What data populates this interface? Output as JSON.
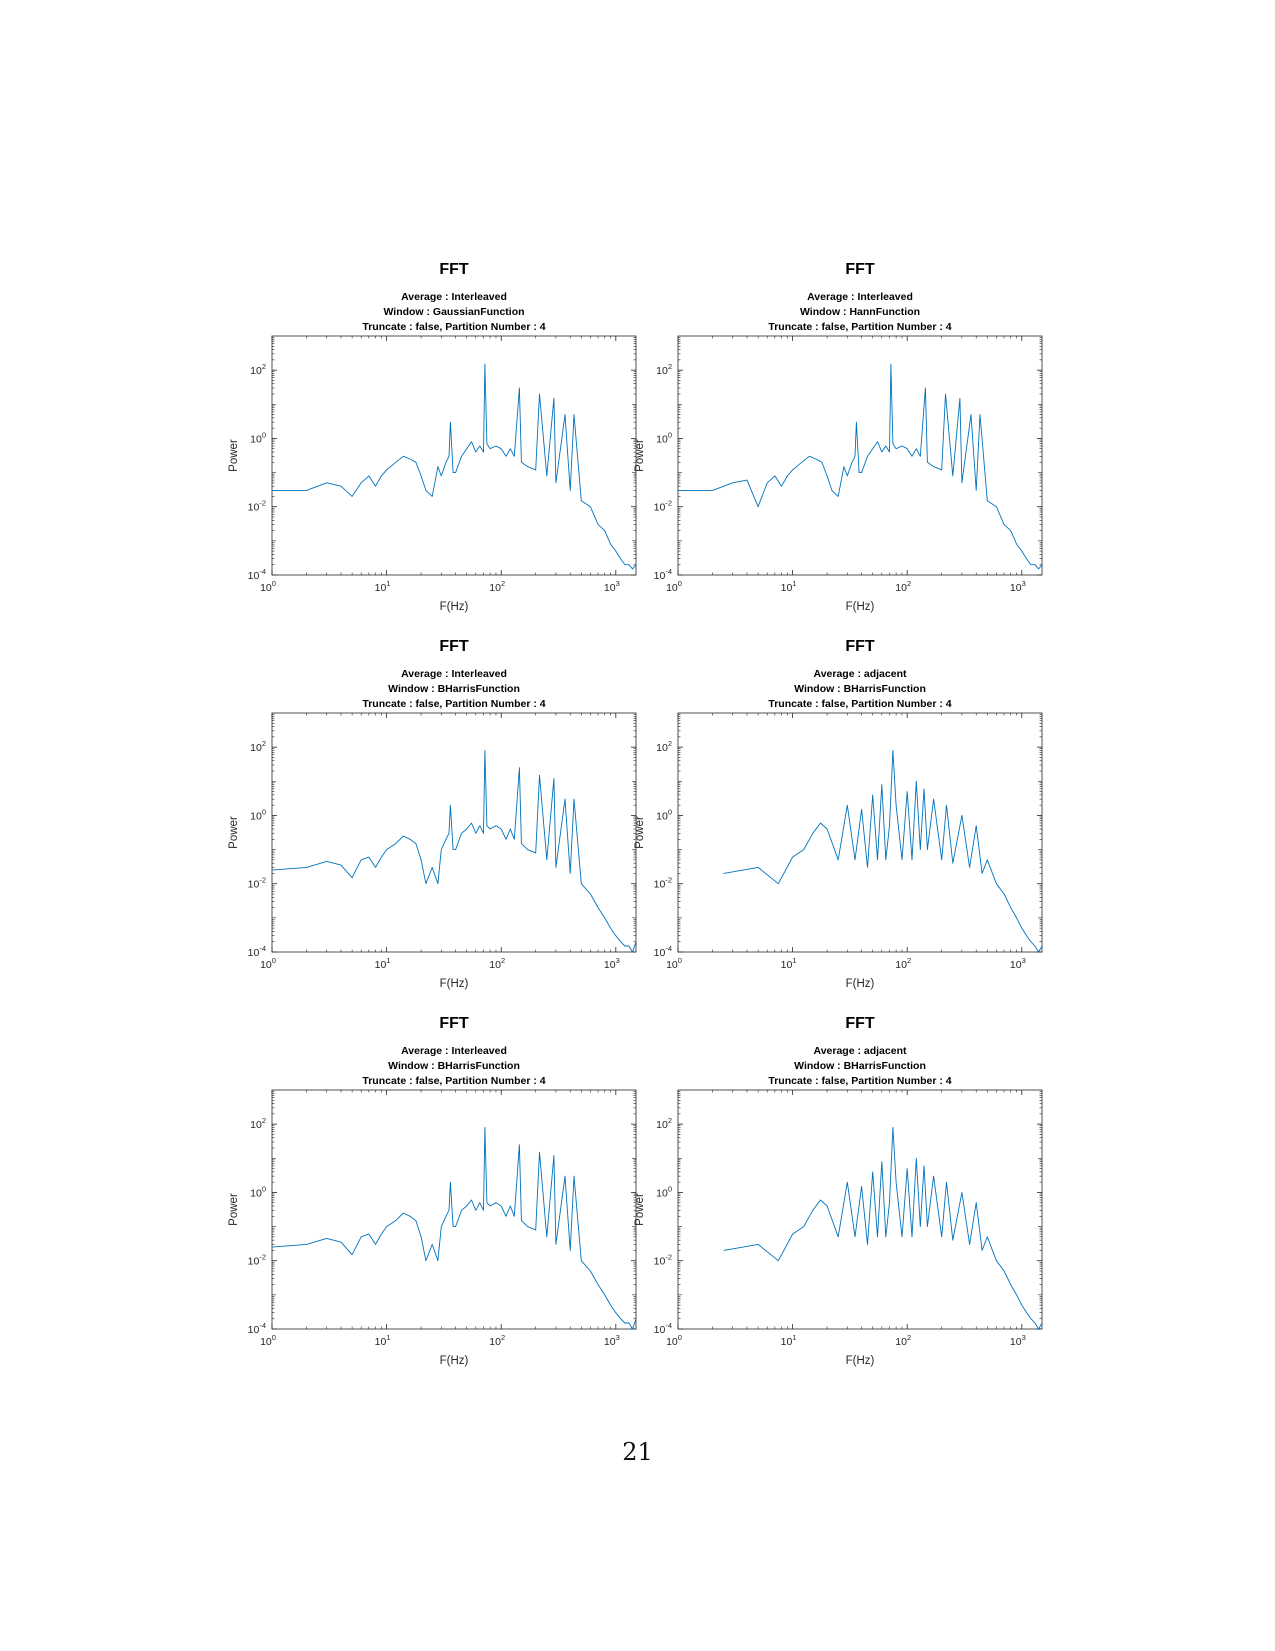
{
  "page": {
    "number": "21"
  },
  "chart_data": [
    {
      "type": "line",
      "title": "FFT",
      "subtitle": [
        "Average : Interleaved",
        "Window : GaussianFunction",
        "Truncate : false,  Partition Number : 4"
      ],
      "xlabel": "F(Hz)",
      "ylabel": "Power",
      "xscale": "log",
      "yscale": "log",
      "xlim": [
        1,
        1500
      ],
      "ylim": [
        0.0001,
        1000
      ],
      "xticks": [
        1,
        10,
        100,
        1000
      ],
      "xticklabels": [
        [
          "10",
          "0"
        ],
        [
          "10",
          "1"
        ],
        [
          "10",
          "2"
        ],
        [
          "10",
          "3"
        ]
      ],
      "yticks": [
        0.0001,
        0.01,
        1,
        100
      ],
      "yticklabels": [
        [
          "10",
          "-4"
        ],
        [
          "10",
          "-2"
        ],
        [
          "10",
          "0"
        ],
        [
          "10",
          "2"
        ]
      ],
      "grid": false,
      "color": "#0072BD",
      "series": [
        {
          "x": [
            1,
            2,
            3,
            4,
            5,
            6,
            7,
            8,
            9,
            10,
            12,
            14,
            16,
            18,
            20,
            22,
            25,
            28,
            30,
            33,
            35,
            36,
            38,
            40,
            45,
            50,
            55,
            60,
            65,
            70,
            72,
            75,
            80,
            90,
            100,
            110,
            120,
            130,
            144,
            150,
            170,
            200,
            216,
            250,
            288,
            300,
            360,
            400,
            432,
            500,
            600,
            700,
            800,
            900,
            1000,
            1100,
            1200,
            1300,
            1400,
            1500
          ],
          "y": [
            0.03,
            0.03,
            0.05,
            0.04,
            0.02,
            0.05,
            0.08,
            0.04,
            0.08,
            0.12,
            0.2,
            0.3,
            0.25,
            0.2,
            0.08,
            0.03,
            0.02,
            0.15,
            0.08,
            0.2,
            0.3,
            3,
            0.1,
            0.1,
            0.3,
            0.5,
            0.8,
            0.4,
            0.6,
            0.4,
            150,
            0.7,
            0.5,
            0.6,
            0.5,
            0.3,
            0.5,
            0.3,
            30,
            0.2,
            0.15,
            0.12,
            20,
            0.08,
            15,
            0.05,
            5,
            0.03,
            5,
            0.015,
            0.01,
            0.003,
            0.002,
            0.0008,
            0.0005,
            0.0003,
            0.0002,
            0.0002,
            0.00015,
            0.0002
          ]
        }
      ]
    },
    {
      "type": "line",
      "title": "FFT",
      "subtitle": [
        "Average : Interleaved",
        "Window : HannFunction",
        "Truncate : false,  Partition Number : 4"
      ],
      "xlabel": "F(Hz)",
      "ylabel": "Power",
      "xscale": "log",
      "yscale": "log",
      "xlim": [
        1,
        1500
      ],
      "ylim": [
        0.0001,
        1000
      ],
      "xticks": [
        1,
        10,
        100,
        1000
      ],
      "xticklabels": [
        [
          "10",
          "0"
        ],
        [
          "10",
          "1"
        ],
        [
          "10",
          "2"
        ],
        [
          "10",
          "3"
        ]
      ],
      "yticks": [
        0.0001,
        0.01,
        1,
        100
      ],
      "yticklabels": [
        [
          "10",
          "-4"
        ],
        [
          "10",
          "-2"
        ],
        [
          "10",
          "0"
        ],
        [
          "10",
          "2"
        ]
      ],
      "grid": false,
      "color": "#0072BD",
      "series": [
        {
          "x": [
            1,
            2,
            3,
            4,
            5,
            6,
            7,
            8,
            9,
            10,
            12,
            14,
            16,
            18,
            20,
            22,
            25,
            28,
            30,
            33,
            35,
            36,
            38,
            40,
            45,
            50,
            55,
            60,
            65,
            70,
            72,
            75,
            80,
            90,
            100,
            110,
            120,
            130,
            144,
            150,
            170,
            200,
            216,
            250,
            288,
            300,
            360,
            400,
            432,
            500,
            600,
            700,
            800,
            900,
            1000,
            1100,
            1200,
            1300,
            1400,
            1500
          ],
          "y": [
            0.03,
            0.03,
            0.05,
            0.06,
            0.01,
            0.05,
            0.08,
            0.04,
            0.08,
            0.12,
            0.2,
            0.3,
            0.25,
            0.2,
            0.08,
            0.03,
            0.02,
            0.15,
            0.08,
            0.2,
            0.3,
            3,
            0.1,
            0.1,
            0.3,
            0.5,
            0.8,
            0.4,
            0.6,
            0.4,
            150,
            0.7,
            0.5,
            0.6,
            0.5,
            0.3,
            0.5,
            0.3,
            30,
            0.2,
            0.15,
            0.12,
            20,
            0.08,
            15,
            0.05,
            5,
            0.03,
            5,
            0.015,
            0.01,
            0.003,
            0.002,
            0.0008,
            0.0005,
            0.0003,
            0.0002,
            0.0002,
            0.00015,
            0.0002
          ]
        }
      ]
    },
    {
      "type": "line",
      "title": "FFT",
      "subtitle": [
        "Average : Interleaved",
        "Window : BHarrisFunction",
        "Truncate : false,  Partition Number : 4"
      ],
      "xlabel": "F(Hz)",
      "ylabel": "Power",
      "xscale": "log",
      "yscale": "log",
      "xlim": [
        1,
        1500
      ],
      "ylim": [
        0.0001,
        1000
      ],
      "xticks": [
        1,
        10,
        100,
        1000
      ],
      "xticklabels": [
        [
          "10",
          "0"
        ],
        [
          "10",
          "1"
        ],
        [
          "10",
          "2"
        ],
        [
          "10",
          "3"
        ]
      ],
      "yticks": [
        0.0001,
        0.01,
        1,
        100
      ],
      "yticklabels": [
        [
          "10",
          "-4"
        ],
        [
          "10",
          "-2"
        ],
        [
          "10",
          "0"
        ],
        [
          "10",
          "2"
        ]
      ],
      "grid": false,
      "color": "#0072BD",
      "series": [
        {
          "x": [
            1,
            2,
            3,
            4,
            5,
            6,
            7,
            8,
            9,
            10,
            12,
            14,
            16,
            18,
            20,
            22,
            25,
            28,
            30,
            33,
            35,
            36,
            38,
            40,
            45,
            50,
            55,
            60,
            65,
            70,
            72,
            75,
            80,
            90,
            100,
            110,
            120,
            130,
            144,
            150,
            170,
            200,
            216,
            250,
            288,
            300,
            360,
            400,
            432,
            500,
            600,
            700,
            800,
            900,
            1000,
            1100,
            1200,
            1300,
            1400,
            1500
          ],
          "y": [
            0.025,
            0.03,
            0.045,
            0.035,
            0.015,
            0.05,
            0.06,
            0.03,
            0.06,
            0.1,
            0.15,
            0.25,
            0.2,
            0.15,
            0.05,
            0.01,
            0.03,
            0.01,
            0.1,
            0.2,
            0.3,
            2,
            0.1,
            0.1,
            0.3,
            0.4,
            0.6,
            0.3,
            0.5,
            0.3,
            80,
            0.5,
            0.4,
            0.5,
            0.4,
            0.2,
            0.4,
            0.2,
            25,
            0.15,
            0.1,
            0.08,
            15,
            0.05,
            12,
            0.03,
            3,
            0.02,
            3,
            0.01,
            0.005,
            0.002,
            0.001,
            0.0005,
            0.0003,
            0.0002,
            0.00015,
            0.00015,
            0.0001,
            0.0002
          ]
        }
      ]
    },
    {
      "type": "line",
      "title": "FFT",
      "subtitle": [
        "Average : adjacent",
        "Window : BHarrisFunction",
        "Truncate : false,  Partition Number : 4"
      ],
      "xlabel": "F(Hz)",
      "ylabel": "Power",
      "xscale": "log",
      "yscale": "log",
      "xlim": [
        1,
        1500
      ],
      "ylim": [
        0.0001,
        1000
      ],
      "xticks": [
        1,
        10,
        100,
        1000
      ],
      "xticklabels": [
        [
          "10",
          "0"
        ],
        [
          "10",
          "1"
        ],
        [
          "10",
          "2"
        ],
        [
          "10",
          "3"
        ]
      ],
      "yticks": [
        0.0001,
        0.01,
        1,
        100
      ],
      "yticklabels": [
        [
          "10",
          "-4"
        ],
        [
          "10",
          "-2"
        ],
        [
          "10",
          "0"
        ],
        [
          "10",
          "2"
        ]
      ],
      "grid": false,
      "color": "#0072BD",
      "series": [
        {
          "x": [
            2.5,
            5,
            7.5,
            10,
            12.5,
            15,
            17.5,
            20,
            25,
            30,
            35,
            40,
            45,
            50,
            55,
            60,
            65,
            70,
            75,
            80,
            90,
            100,
            110,
            120,
            130,
            140,
            150,
            170,
            200,
            220,
            250,
            300,
            350,
            400,
            450,
            500,
            600,
            700,
            800,
            900,
            1000,
            1100,
            1200,
            1300,
            1400,
            1500
          ],
          "y": [
            0.02,
            0.03,
            0.01,
            0.06,
            0.1,
            0.3,
            0.6,
            0.4,
            0.05,
            2,
            0.05,
            1.5,
            0.03,
            4,
            0.05,
            8,
            0.05,
            0.5,
            80,
            2,
            0.05,
            5,
            0.05,
            10,
            0.1,
            6,
            0.1,
            3,
            0.05,
            2,
            0.04,
            1,
            0.03,
            0.5,
            0.02,
            0.05,
            0.01,
            0.005,
            0.002,
            0.001,
            0.0005,
            0.0003,
            0.0002,
            0.00015,
            0.0001,
            0.00015
          ]
        }
      ]
    },
    {
      "type": "line",
      "title": "FFT",
      "subtitle": [
        "Average : Interleaved",
        "Window : BHarrisFunction",
        "Truncate : false,  Partition Number : 4"
      ],
      "xlabel": "F(Hz)",
      "ylabel": "Power",
      "xscale": "log",
      "yscale": "log",
      "xlim": [
        1,
        1500
      ],
      "ylim": [
        0.0001,
        1000
      ],
      "xticks": [
        1,
        10,
        100,
        1000
      ],
      "xticklabels": [
        [
          "10",
          "0"
        ],
        [
          "10",
          "1"
        ],
        [
          "10",
          "2"
        ],
        [
          "10",
          "3"
        ]
      ],
      "yticks": [
        0.0001,
        0.01,
        1,
        100
      ],
      "yticklabels": [
        [
          "10",
          "-4"
        ],
        [
          "10",
          "-2"
        ],
        [
          "10",
          "0"
        ],
        [
          "10",
          "2"
        ]
      ],
      "grid": false,
      "color": "#0072BD",
      "series": [
        {
          "x": [
            1,
            2,
            3,
            4,
            5,
            6,
            7,
            8,
            9,
            10,
            12,
            14,
            16,
            18,
            20,
            22,
            25,
            28,
            30,
            33,
            35,
            36,
            38,
            40,
            45,
            50,
            55,
            60,
            65,
            70,
            72,
            75,
            80,
            90,
            100,
            110,
            120,
            130,
            144,
            150,
            170,
            200,
            216,
            250,
            288,
            300,
            360,
            400,
            432,
            500,
            600,
            700,
            800,
            900,
            1000,
            1100,
            1200,
            1300,
            1400,
            1500
          ],
          "y": [
            0.025,
            0.03,
            0.045,
            0.035,
            0.015,
            0.05,
            0.06,
            0.03,
            0.06,
            0.1,
            0.15,
            0.25,
            0.2,
            0.15,
            0.05,
            0.01,
            0.03,
            0.01,
            0.1,
            0.2,
            0.3,
            2,
            0.1,
            0.1,
            0.3,
            0.4,
            0.6,
            0.3,
            0.5,
            0.3,
            80,
            0.5,
            0.4,
            0.5,
            0.4,
            0.2,
            0.4,
            0.2,
            25,
            0.15,
            0.1,
            0.08,
            15,
            0.05,
            12,
            0.03,
            3,
            0.02,
            3,
            0.01,
            0.005,
            0.002,
            0.001,
            0.0005,
            0.0003,
            0.0002,
            0.00015,
            0.00015,
            0.0001,
            0.0002
          ]
        }
      ]
    },
    {
      "type": "line",
      "title": "FFT",
      "subtitle": [
        "Average : adjacent",
        "Window : BHarrisFunction",
        "Truncate : false,  Partition Number : 4"
      ],
      "xlabel": "F(Hz)",
      "ylabel": "Power",
      "xscale": "log",
      "yscale": "log",
      "xlim": [
        1,
        1500
      ],
      "ylim": [
        0.0001,
        1000
      ],
      "xticks": [
        1,
        10,
        100,
        1000
      ],
      "xticklabels": [
        [
          "10",
          "0"
        ],
        [
          "10",
          "1"
        ],
        [
          "10",
          "2"
        ],
        [
          "10",
          "3"
        ]
      ],
      "yticks": [
        0.0001,
        0.01,
        1,
        100
      ],
      "yticklabels": [
        [
          "10",
          "-4"
        ],
        [
          "10",
          "-2"
        ],
        [
          "10",
          "0"
        ],
        [
          "10",
          "2"
        ]
      ],
      "grid": false,
      "color": "#0072BD",
      "series": [
        {
          "x": [
            2.5,
            5,
            7.5,
            10,
            12.5,
            15,
            17.5,
            20,
            25,
            30,
            35,
            40,
            45,
            50,
            55,
            60,
            65,
            70,
            75,
            80,
            90,
            100,
            110,
            120,
            130,
            140,
            150,
            170,
            200,
            220,
            250,
            300,
            350,
            400,
            450,
            500,
            600,
            700,
            800,
            900,
            1000,
            1100,
            1200,
            1300,
            1400,
            1500
          ],
          "y": [
            0.02,
            0.03,
            0.01,
            0.06,
            0.1,
            0.3,
            0.6,
            0.4,
            0.05,
            2,
            0.05,
            1.5,
            0.03,
            4,
            0.05,
            8,
            0.05,
            0.5,
            80,
            2,
            0.05,
            5,
            0.05,
            10,
            0.1,
            6,
            0.1,
            3,
            0.05,
            2,
            0.04,
            1,
            0.03,
            0.5,
            0.02,
            0.05,
            0.01,
            0.005,
            0.002,
            0.001,
            0.0005,
            0.0003,
            0.0002,
            0.00015,
            0.0001,
            0.00015
          ]
        }
      ]
    }
  ]
}
